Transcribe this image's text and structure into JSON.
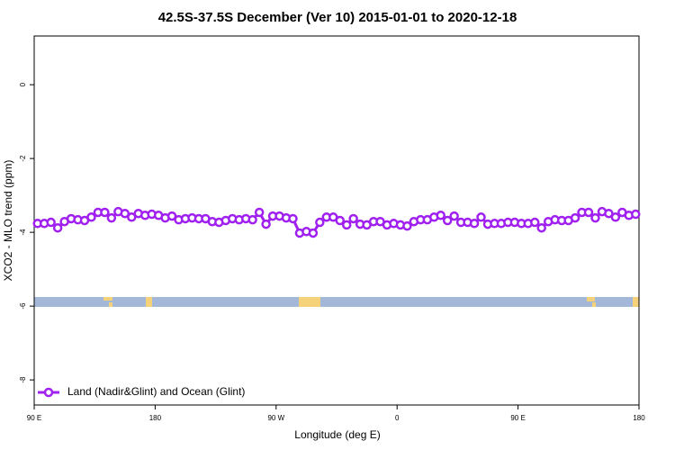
{
  "chart_data": {
    "type": "line",
    "title": "42.5S-37.5S December (Ver 10)   2015-01-01 to 2020-12-18",
    "x_label": "Longitude (deg E)",
    "y_label": "XCO2 - MLO trend (ppm)",
    "xlim": [
      90,
      540
    ],
    "xticks": [
      {
        "value": 90,
        "label": "90 E"
      },
      {
        "value": 180,
        "label": "180"
      },
      {
        "value": 270,
        "label": "90 W"
      },
      {
        "value": 360,
        "label": "0"
      },
      {
        "value": 450,
        "label": "90 E"
      },
      {
        "value": 540,
        "label": "180"
      }
    ],
    "ylim": [
      -8.68,
      1.32
    ],
    "yticks": [
      0,
      -2,
      -4,
      -6,
      -8
    ],
    "legend": "bottomleft",
    "x": [
      92.5,
      97.5,
      102.5,
      107.5,
      112.5,
      117.5,
      122.5,
      127.5,
      132.5,
      137.5,
      142.5,
      147.5,
      152.5,
      157.5,
      162.5,
      167.5,
      172.5,
      177.5,
      182.5,
      187.5,
      192.5,
      197.5,
      202.5,
      207.5,
      212.5,
      217.5,
      222.5,
      227.5,
      232.5,
      237.5,
      242.5,
      247.5,
      252.5,
      257.5,
      262.5,
      267.5,
      272.5,
      277.5,
      282.5,
      287.5,
      292.5,
      297.5,
      302.5,
      307.5,
      312.5,
      317.5,
      322.5,
      327.5,
      332.5,
      337.5,
      342.5,
      347.5,
      352.5,
      357.5,
      362.5,
      367.5,
      372.5,
      377.5,
      382.5,
      387.5,
      392.5,
      397.5,
      402.5,
      407.5,
      412.5,
      417.5,
      422.5,
      427.5,
      432.5,
      437.5,
      442.5,
      447.5,
      452.5,
      457.5,
      462.5,
      467.5,
      472.5,
      477.5,
      482.5,
      487.5,
      492.5,
      497.5,
      502.5,
      507.5,
      512.5,
      517.5,
      522.5,
      527.5,
      532.5,
      537.5
    ],
    "series": [
      {
        "name": "Land (Nadir&Glint) and Ocean (Glint)",
        "color": "#a020f0",
        "values": [
          -3.76,
          -3.76,
          -3.73,
          -3.88,
          -3.71,
          -3.63,
          -3.66,
          -3.68,
          -3.59,
          -3.46,
          -3.46,
          -3.61,
          -3.44,
          -3.49,
          -3.59,
          -3.49,
          -3.54,
          -3.51,
          -3.54,
          -3.61,
          -3.56,
          -3.66,
          -3.63,
          -3.61,
          -3.63,
          -3.63,
          -3.71,
          -3.73,
          -3.68,
          -3.63,
          -3.66,
          -3.63,
          -3.66,
          -3.46,
          -3.78,
          -3.56,
          -3.56,
          -3.61,
          -3.63,
          -4.02,
          -3.98,
          -4.02,
          -3.73,
          -3.59,
          -3.59,
          -3.68,
          -3.8,
          -3.63,
          -3.78,
          -3.8,
          -3.71,
          -3.71,
          -3.8,
          -3.76,
          -3.8,
          -3.83,
          -3.71,
          -3.66,
          -3.66,
          -3.59,
          -3.54,
          -3.68,
          -3.56,
          -3.73,
          -3.73,
          -3.76,
          -3.59,
          -3.78,
          -3.76,
          -3.76,
          -3.73,
          -3.73,
          -3.76,
          -3.76,
          -3.73,
          -3.88,
          -3.71,
          -3.66,
          -3.68,
          -3.68,
          -3.61,
          -3.46,
          -3.46,
          -3.61,
          -3.44,
          -3.49,
          -3.59,
          -3.46,
          -3.54,
          -3.51
        ]
      }
    ]
  }
}
